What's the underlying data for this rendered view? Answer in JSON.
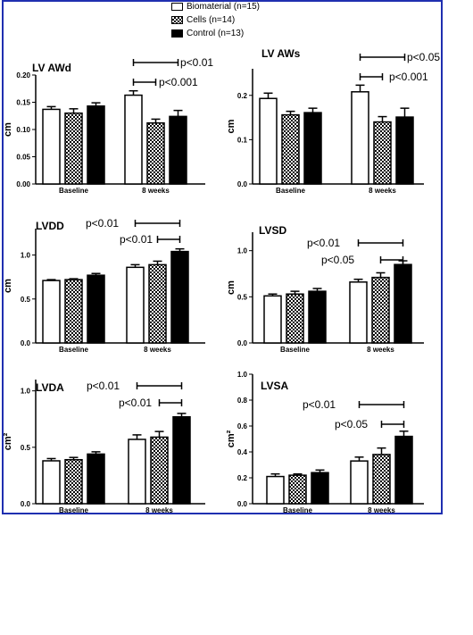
{
  "legend": {
    "items": [
      {
        "label": "Biomaterial (n=15)",
        "fill": "white"
      },
      {
        "label": "Cells (n=14)",
        "fill": "checker"
      },
      {
        "label": "Control (n=13)",
        "fill": "black"
      }
    ]
  },
  "colors": {
    "frame": "#1f2fb0",
    "bar_dark": "#000000",
    "bar_light": "#ffffff"
  },
  "chart_data": [
    {
      "type": "bar",
      "title": "LV AWd",
      "ylabel": "cm",
      "categories": [
        "Baseline",
        "8 weeks"
      ],
      "ylim": [
        0,
        0.2
      ],
      "yticks": [
        "0.00",
        "0.05",
        "0.10",
        "0.15",
        "0.20"
      ],
      "series": [
        {
          "name": "Biomaterial (n=15)",
          "values": [
            0.137,
            0.163
          ],
          "errors": [
            0.005,
            0.008
          ]
        },
        {
          "name": "Cells (n=14)",
          "values": [
            0.13,
            0.112
          ],
          "errors": [
            0.008,
            0.007
          ]
        },
        {
          "name": "Control (n=13)",
          "values": [
            0.143,
            0.124
          ],
          "errors": [
            0.006,
            0.011
          ]
        }
      ],
      "annotations": [
        {
          "text": "p<0.01",
          "group": 1,
          "from": 0,
          "to": 2
        },
        {
          "text": "p<0.001",
          "group": 1,
          "from": 0,
          "to": 1
        }
      ]
    },
    {
      "type": "bar",
      "title": "LV AWs",
      "ylabel": "cm",
      "categories": [
        "Baseline",
        "8 weeks"
      ],
      "ylim": [
        0,
        0.26
      ],
      "yticks": [
        "0.0",
        "0.1",
        "0.2"
      ],
      "series": [
        {
          "name": "Biomaterial (n=15)",
          "values": [
            0.193,
            0.208
          ],
          "errors": [
            0.012,
            0.015
          ]
        },
        {
          "name": "Cells (n=14)",
          "values": [
            0.156,
            0.14
          ],
          "errors": [
            0.008,
            0.012
          ]
        },
        {
          "name": "Control (n=13)",
          "values": [
            0.161,
            0.151
          ],
          "errors": [
            0.01,
            0.02
          ]
        }
      ],
      "annotations": [
        {
          "text": "p<0.05",
          "group": 1,
          "from": 0,
          "to": 2
        },
        {
          "text": "p<0.001",
          "group": 1,
          "from": 0,
          "to": 1
        }
      ]
    },
    {
      "type": "bar",
      "title": "LVDD",
      "ylabel": "cm",
      "categories": [
        "Baseline",
        "8 weeks"
      ],
      "ylim": [
        0,
        1.3
      ],
      "yticks": [
        "0.0",
        "0.5",
        "1.0"
      ],
      "series": [
        {
          "name": "Biomaterial (n=15)",
          "values": [
            0.71,
            0.86
          ],
          "errors": [
            0.01,
            0.03
          ]
        },
        {
          "name": "Cells (n=14)",
          "values": [
            0.72,
            0.89
          ],
          "errors": [
            0.01,
            0.04
          ]
        },
        {
          "name": "Control (n=13)",
          "values": [
            0.77,
            1.04
          ],
          "errors": [
            0.02,
            0.03
          ]
        }
      ],
      "annotations": [
        {
          "text": "p<0.01",
          "group": 1,
          "from": 0,
          "to": 2
        },
        {
          "text": "p<0.01",
          "group": 1,
          "from": 1,
          "to": 2
        }
      ]
    },
    {
      "type": "bar",
      "title": "LVSD",
      "ylabel": "cm",
      "categories": [
        "Baseline",
        "8 weeks"
      ],
      "ylim": [
        0,
        1.2
      ],
      "yticks": [
        "0.0",
        "0.5",
        "1.0"
      ],
      "series": [
        {
          "name": "Biomaterial (n=15)",
          "values": [
            0.51,
            0.66
          ],
          "errors": [
            0.02,
            0.03
          ]
        },
        {
          "name": "Cells (n=14)",
          "values": [
            0.53,
            0.71
          ],
          "errors": [
            0.03,
            0.05
          ]
        },
        {
          "name": "Control (n=13)",
          "values": [
            0.56,
            0.85
          ],
          "errors": [
            0.03,
            0.04
          ]
        }
      ],
      "annotations": [
        {
          "text": "p<0.01",
          "group": 1,
          "from": 0,
          "to": 2
        },
        {
          "text": "p<0.05",
          "group": 1,
          "from": 1,
          "to": 2
        }
      ]
    },
    {
      "type": "bar",
      "title": "LVDA",
      "ylabel": "cm²",
      "categories": [
        "Baseline",
        "8 weeks"
      ],
      "ylim": [
        0,
        1.1
      ],
      "yticks": [
        "0.0",
        "0.5",
        "1.0"
      ],
      "series": [
        {
          "name": "Biomaterial (n=15)",
          "values": [
            0.38,
            0.57
          ],
          "errors": [
            0.02,
            0.04
          ]
        },
        {
          "name": "Cells (n=14)",
          "values": [
            0.39,
            0.59
          ],
          "errors": [
            0.02,
            0.05
          ]
        },
        {
          "name": "Control (n=13)",
          "values": [
            0.44,
            0.77
          ],
          "errors": [
            0.02,
            0.03
          ]
        }
      ],
      "annotations": [
        {
          "text": "p<0.01",
          "group": 1,
          "from": 0,
          "to": 2
        },
        {
          "text": "p<0.01",
          "group": 1,
          "from": 1,
          "to": 2
        }
      ]
    },
    {
      "type": "bar",
      "title": "LVSA",
      "ylabel": "cm²",
      "categories": [
        "Baseline",
        "8 weeks"
      ],
      "ylim": [
        0,
        1.0
      ],
      "yticks": [
        "0.0",
        "0.2",
        "0.4",
        "0.6",
        "0.8",
        "1.0"
      ],
      "series": [
        {
          "name": "Biomaterial (n=15)",
          "values": [
            0.21,
            0.33
          ],
          "errors": [
            0.02,
            0.03
          ]
        },
        {
          "name": "Cells (n=14)",
          "values": [
            0.22,
            0.38
          ],
          "errors": [
            0.01,
            0.05
          ]
        },
        {
          "name": "Control (n=13)",
          "values": [
            0.24,
            0.52
          ],
          "errors": [
            0.02,
            0.04
          ]
        }
      ],
      "annotations": [
        {
          "text": "p<0.01",
          "group": 1,
          "from": 0,
          "to": 2
        },
        {
          "text": "p<0.05",
          "group": 1,
          "from": 1,
          "to": 2
        }
      ]
    }
  ]
}
